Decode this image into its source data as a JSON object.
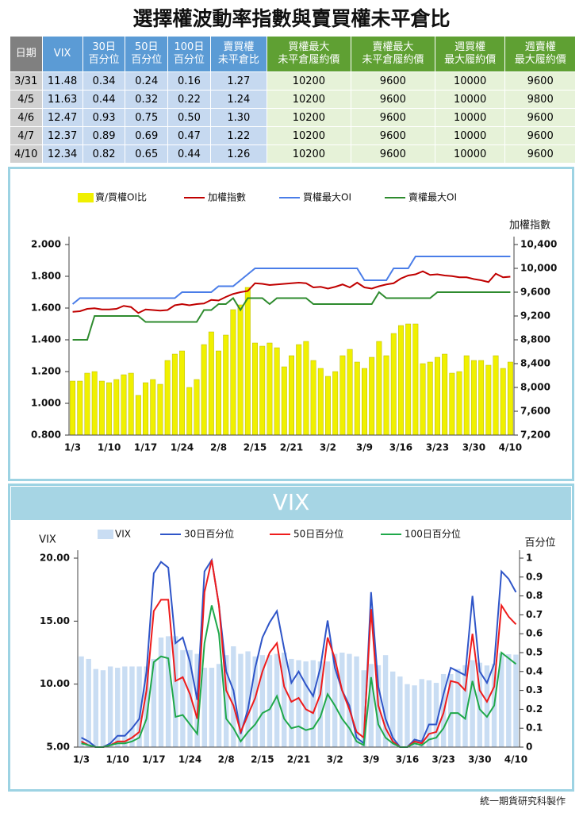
{
  "title": "選擇權波動率指數與賣買權未平倉比",
  "table": {
    "header": [
      [
        "日期"
      ],
      [
        "VIX"
      ],
      [
        "30日",
        "百分位"
      ],
      [
        "50日",
        "百分位"
      ],
      [
        "100日",
        "百分位"
      ],
      [
        "賣買權",
        "未平倉比"
      ],
      [
        "買權最大",
        "未平倉履約價"
      ],
      [
        "賣權最大",
        "未平倉履約價"
      ],
      [
        "週買權",
        "最大履約價"
      ],
      [
        "週賣權",
        "最大履約價"
      ]
    ],
    "rows": [
      [
        "3/31",
        "11.48",
        "0.34",
        "0.24",
        "0.16",
        "1.27",
        "10200",
        "9600",
        "10000",
        "9600"
      ],
      [
        "4/5",
        "11.63",
        "0.44",
        "0.32",
        "0.22",
        "1.24",
        "10200",
        "9600",
        "10000",
        "9800"
      ],
      [
        "4/6",
        "12.47",
        "0.93",
        "0.75",
        "0.50",
        "1.30",
        "10200",
        "9600",
        "10000",
        "9600"
      ],
      [
        "4/7",
        "12.37",
        "0.89",
        "0.69",
        "0.47",
        "1.22",
        "10200",
        "9600",
        "10000",
        "9600"
      ],
      [
        "4/10",
        "12.34",
        "0.82",
        "0.65",
        "0.44",
        "1.26",
        "10200",
        "9600",
        "10000",
        "9600"
      ]
    ]
  },
  "chart_data": [
    {
      "type": "combo",
      "categories": [
        "1/3",
        null,
        null,
        null,
        null,
        "1/10",
        null,
        null,
        null,
        null,
        "1/17",
        null,
        null,
        null,
        null,
        "1/24",
        null,
        null,
        null,
        null,
        "2/8",
        null,
        null,
        null,
        null,
        "2/15",
        null,
        null,
        null,
        null,
        "2/21",
        null,
        null,
        null,
        null,
        "3/2",
        null,
        null,
        null,
        null,
        "3/9",
        null,
        null,
        null,
        null,
        "3/16",
        null,
        null,
        null,
        null,
        "3/23",
        null,
        null,
        null,
        null,
        "3/30",
        null,
        null,
        null,
        null,
        "4/10"
      ],
      "y2_label": "加權指數",
      "ylim": [
        0.8,
        2.0
      ],
      "yticks": [
        {
          "value": 0.8,
          "label": "0.800"
        },
        {
          "value": 1.0,
          "label": "1.000"
        },
        {
          "value": 1.2,
          "label": "1.200"
        },
        {
          "value": 1.4,
          "label": "1.400"
        },
        {
          "value": 1.6,
          "label": "1.600"
        },
        {
          "value": 1.8,
          "label": "1.800"
        },
        {
          "value": 2.0,
          "label": "2.000"
        }
      ],
      "y2lim": [
        7200,
        10400
      ],
      "y2ticks": [
        {
          "value": 7200,
          "label": "7,200"
        },
        {
          "value": 7600,
          "label": "7,600"
        },
        {
          "value": 8000,
          "label": "8,000"
        },
        {
          "value": 8400,
          "label": "8,400"
        },
        {
          "value": 8800,
          "label": "8,800"
        },
        {
          "value": 9200,
          "label": "9,200"
        },
        {
          "value": 9600,
          "label": "9,600"
        },
        {
          "value": 10000,
          "label": "10,000"
        },
        {
          "value": 10400,
          "label": "10,400"
        }
      ],
      "series": [
        {
          "name": "賣/買權OI比",
          "type": "bar",
          "color": "#f0f000",
          "values": [
            1.14,
            1.14,
            1.19,
            1.2,
            1.14,
            1.13,
            1.15,
            1.18,
            1.19,
            1.05,
            1.13,
            1.15,
            1.12,
            1.27,
            1.31,
            1.33,
            1.1,
            1.15,
            1.37,
            1.45,
            1.33,
            1.43,
            1.59,
            1.62,
            1.73,
            1.38,
            1.36,
            1.38,
            1.35,
            1.23,
            1.3,
            1.37,
            1.39,
            1.27,
            1.22,
            1.17,
            1.2,
            1.3,
            1.34,
            1.26,
            1.22,
            1.29,
            1.39,
            1.3,
            1.44,
            1.49,
            1.5,
            1.5,
            1.25,
            1.26,
            1.29,
            1.31,
            1.19,
            1.2,
            1.3,
            1.27,
            1.27,
            1.24,
            1.3,
            1.22,
            1.26
          ]
        },
        {
          "name": "加權指數",
          "type": "line",
          "axis": "y2",
          "color": "#c00000",
          "values": [
            9270,
            9280,
            9320,
            9330,
            9310,
            9310,
            9320,
            9370,
            9350,
            9250,
            9310,
            9300,
            9290,
            9300,
            9380,
            9400,
            9380,
            9400,
            9410,
            9470,
            9460,
            9520,
            9570,
            9600,
            9620,
            9750,
            9740,
            9720,
            9730,
            9740,
            9750,
            9760,
            9750,
            9680,
            9690,
            9660,
            9690,
            9730,
            9680,
            9760,
            9680,
            9660,
            9700,
            9730,
            9750,
            9830,
            9880,
            9900,
            9950,
            9890,
            9900,
            9880,
            9870,
            9850,
            9850,
            9820,
            9800,
            9770,
            9910,
            9850,
            9860
          ]
        },
        {
          "name": "買權最大OI",
          "type": "line",
          "axis": "y2",
          "color": "#4a7de8",
          "values": [
            9400,
            9500,
            9500,
            9500,
            9500,
            9500,
            9500,
            9500,
            9500,
            9500,
            9500,
            9500,
            9500,
            9500,
            9500,
            9600,
            9600,
            9600,
            9600,
            9600,
            9700,
            9700,
            9700,
            9800,
            9900,
            10000,
            10000,
            10000,
            10000,
            10000,
            10000,
            10000,
            10000,
            10000,
            10000,
            10000,
            10000,
            10000,
            10000,
            10000,
            9800,
            9800,
            9800,
            9800,
            10000,
            10000,
            10000,
            10200,
            10200,
            10200,
            10200,
            10200,
            10200,
            10200,
            10200,
            10200,
            10200,
            10200,
            10200,
            10200,
            10200
          ]
        },
        {
          "name": "賣權最大OI",
          "type": "line",
          "axis": "y2",
          "color": "#2e8b2e",
          "values": [
            8800,
            8800,
            8800,
            9200,
            9200,
            9200,
            9200,
            9200,
            9200,
            9200,
            9100,
            9100,
            9100,
            9100,
            9100,
            9100,
            9100,
            9100,
            9300,
            9300,
            9400,
            9400,
            9500,
            9300,
            9500,
            9500,
            9500,
            9400,
            9500,
            9500,
            9500,
            9500,
            9500,
            9400,
            9400,
            9400,
            9400,
            9400,
            9400,
            9400,
            9400,
            9400,
            9600,
            9500,
            9500,
            9500,
            9500,
            9500,
            9500,
            9500,
            9600,
            9600,
            9600,
            9600,
            9600,
            9600,
            9600,
            9600,
            9600,
            9600,
            9600
          ]
        }
      ]
    },
    {
      "type": "combo",
      "title": "VIX",
      "categories": [
        "1/3",
        null,
        null,
        null,
        null,
        "1/10",
        null,
        null,
        null,
        null,
        "1/17",
        null,
        null,
        null,
        null,
        "1/24",
        null,
        null,
        null,
        null,
        "2/8",
        null,
        null,
        null,
        null,
        "2/15",
        null,
        null,
        null,
        null,
        "2/21",
        null,
        null,
        null,
        null,
        "3/2",
        null,
        null,
        null,
        null,
        "3/9",
        null,
        null,
        null,
        null,
        "3/16",
        null,
        null,
        null,
        null,
        "3/23",
        null,
        null,
        null,
        null,
        "3/30",
        null,
        null,
        null,
        null,
        "4/10"
      ],
      "y_label": "VIX",
      "y2_label": "百分位",
      "ylim": [
        5,
        20
      ],
      "yticks": [
        {
          "value": 5,
          "label": "5.00"
        },
        {
          "value": 10,
          "label": "10.00"
        },
        {
          "value": 15,
          "label": "15.00"
        },
        {
          "value": 20,
          "label": "20.00"
        }
      ],
      "y2lim": [
        0,
        1
      ],
      "y2ticks": [
        0,
        0.1,
        0.2,
        0.3,
        0.4,
        0.5,
        0.6,
        0.7,
        0.8,
        0.9,
        1
      ],
      "series": [
        {
          "name": "VIX",
          "type": "bar",
          "color": "#c9ddf3",
          "values": [
            12.2,
            12.0,
            11.2,
            11.1,
            11.4,
            11.3,
            11.4,
            11.4,
            11.4,
            11.4,
            12.0,
            13.7,
            13.8,
            13.8,
            12.7,
            12.7,
            12.4,
            11.3,
            11.3,
            11.6,
            12.3,
            13.0,
            12.4,
            12.6,
            12.2,
            12.3,
            12.3,
            12.4,
            12.5,
            12.0,
            11.9,
            11.8,
            11.9,
            11.8,
            11.8,
            12.4,
            12.5,
            12.4,
            12.2,
            11.1,
            11.6,
            11.5,
            12.3,
            11.0,
            10.6,
            10.0,
            9.9,
            10.4,
            10.3,
            10.1,
            10.8,
            10.8,
            11.2,
            11.5,
            11.9,
            11.7,
            11.48,
            11.63,
            12.47,
            12.37,
            12.34
          ]
        },
        {
          "name": "30日百分位",
          "type": "line",
          "axis": "y2",
          "color": "#2f55c8",
          "values": [
            0.05,
            0.03,
            0,
            0,
            0.02,
            0.06,
            0.06,
            0.1,
            0.15,
            0.4,
            0.92,
            0.98,
            0.95,
            0.55,
            0.58,
            0.45,
            0.25,
            0.93,
            0.99,
            0.75,
            0.4,
            0.3,
            0.07,
            0.2,
            0.42,
            0.58,
            0.66,
            0.72,
            0.52,
            0.34,
            0.4,
            0.33,
            0.27,
            0.42,
            0.67,
            0.42,
            0.3,
            0.22,
            0.05,
            0.02,
            0.82,
            0.32,
            0.15,
            0.05,
            0,
            0,
            0.04,
            0.03,
            0.12,
            0.12,
            0.28,
            0.42,
            0.4,
            0.38,
            0.8,
            0.4,
            0.34,
            0.44,
            0.93,
            0.89,
            0.82
          ]
        },
        {
          "name": "50日百分位",
          "type": "line",
          "axis": "y2",
          "color": "#ee1c1c",
          "values": [
            0.03,
            0.01,
            0,
            0,
            0.01,
            0.03,
            0.03,
            0.05,
            0.08,
            0.3,
            0.72,
            0.78,
            0.78,
            0.35,
            0.37,
            0.28,
            0.15,
            0.82,
            0.99,
            0.75,
            0.3,
            0.22,
            0.08,
            0.17,
            0.26,
            0.4,
            0.5,
            0.55,
            0.32,
            0.24,
            0.26,
            0.2,
            0.18,
            0.28,
            0.58,
            0.47,
            0.3,
            0.2,
            0.08,
            0.05,
            0.73,
            0.22,
            0.1,
            0.03,
            0,
            0,
            0.03,
            0.02,
            0.07,
            0.08,
            0.18,
            0.35,
            0.34,
            0.3,
            0.6,
            0.3,
            0.24,
            0.32,
            0.75,
            0.69,
            0.65
          ]
        },
        {
          "name": "100日百分位",
          "type": "line",
          "axis": "y2",
          "color": "#1fa84a",
          "values": [
            0.02,
            0.01,
            0,
            0,
            0.01,
            0.02,
            0.02,
            0.03,
            0.05,
            0.15,
            0.45,
            0.48,
            0.47,
            0.16,
            0.17,
            0.12,
            0.07,
            0.55,
            0.75,
            0.6,
            0.15,
            0.1,
            0.03,
            0.08,
            0.12,
            0.18,
            0.2,
            0.27,
            0.15,
            0.1,
            0.11,
            0.09,
            0.1,
            0.16,
            0.28,
            0.22,
            0.15,
            0.1,
            0.03,
            0.01,
            0.37,
            0.12,
            0.05,
            0.02,
            0,
            0,
            0.02,
            0.01,
            0.04,
            0.05,
            0.1,
            0.18,
            0.18,
            0.15,
            0.35,
            0.2,
            0.16,
            0.22,
            0.5,
            0.47,
            0.44
          ]
        }
      ]
    }
  ],
  "footer": "統一期貨研究科製作"
}
